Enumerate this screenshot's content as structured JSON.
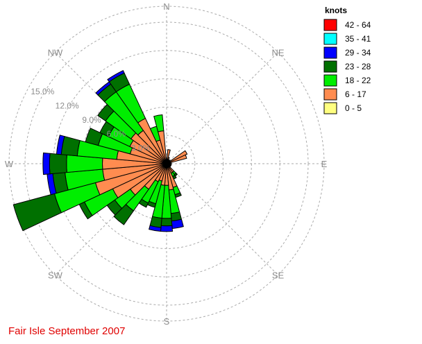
{
  "chart_data": {
    "type": "wind-rose",
    "title": "Fair Isle September 2007",
    "legend_title": "knots",
    "legend_position": "top-right",
    "speed_bins": [
      {
        "label": "0 - 5",
        "color": "#ffff80"
      },
      {
        "label": "6 - 17",
        "color": "#ff8c50"
      },
      {
        "label": "18 - 22",
        "color": "#00ee00"
      },
      {
        "label": "23 - 28",
        "color": "#007000"
      },
      {
        "label": "29 - 34",
        "color": "#0000ff"
      },
      {
        "label": "35 - 41",
        "color": "#00ffff"
      },
      {
        "label": "42 - 64",
        "color": "#ff0000"
      }
    ],
    "direction_labels": [
      "N",
      "NE",
      "E",
      "SE",
      "S",
      "SW",
      "W",
      "NW"
    ],
    "ring_labels": [
      "3.0%",
      "6.0%",
      "9.0%",
      "12.0%",
      "15.0%"
    ],
    "rings_percent": [
      3,
      6,
      9,
      12,
      15
    ],
    "sector_width_deg": 10,
    "sectors": [
      {
        "dir": 0,
        "values": [
          0.2,
          0.0,
          0.0,
          0.0,
          0.0,
          0.0,
          0.0
        ]
      },
      {
        "dir": 10,
        "values": [
          0.5,
          1.0,
          0.0,
          0.0,
          0.0,
          0.0,
          0.0
        ]
      },
      {
        "dir": 20,
        "values": [
          0.3,
          0.4,
          0.0,
          0.0,
          0.0,
          0.0,
          0.0
        ]
      },
      {
        "dir": 30,
        "values": [
          0.2,
          0.3,
          0.0,
          0.0,
          0.0,
          0.0,
          0.0
        ]
      },
      {
        "dir": 40,
        "values": [
          0.2,
          0.2,
          0.0,
          0.0,
          0.0,
          0.0,
          0.0
        ]
      },
      {
        "dir": 50,
        "values": [
          0.2,
          0.3,
          0.0,
          0.0,
          0.0,
          0.0,
          0.0
        ]
      },
      {
        "dir": 60,
        "values": [
          0.2,
          2.2,
          0.0,
          0.0,
          0.0,
          0.0,
          0.0
        ]
      },
      {
        "dir": 70,
        "values": [
          0.2,
          2.0,
          0.0,
          0.0,
          0.0,
          0.0,
          0.0
        ]
      },
      {
        "dir": 80,
        "values": [
          0.2,
          0.3,
          0.0,
          0.0,
          0.0,
          0.0,
          0.0
        ]
      },
      {
        "dir": 90,
        "values": [
          0.2,
          0.3,
          0.0,
          0.0,
          0.0,
          0.0,
          0.0
        ]
      },
      {
        "dir": 100,
        "values": [
          0.2,
          0.3,
          0.0,
          0.0,
          0.0,
          0.0,
          0.0
        ]
      },
      {
        "dir": 110,
        "values": [
          0.2,
          0.3,
          0.0,
          0.0,
          0.0,
          0.0,
          0.0
        ]
      },
      {
        "dir": 120,
        "values": [
          0.2,
          0.3,
          0.0,
          0.0,
          0.0,
          0.0,
          0.0
        ]
      },
      {
        "dir": 130,
        "values": [
          0.2,
          0.3,
          0.0,
          0.0,
          0.0,
          0.0,
          0.0
        ]
      },
      {
        "dir": 140,
        "values": [
          0.3,
          0.8,
          0.3,
          0.2,
          0.0,
          0.0,
          0.0
        ]
      },
      {
        "dir": 150,
        "values": [
          0.3,
          0.8,
          0.4,
          0.3,
          0.0,
          0.0,
          0.0
        ]
      },
      {
        "dir": 160,
        "values": [
          0.3,
          2.3,
          0.8,
          0.3,
          0.0,
          0.0,
          0.0
        ]
      },
      {
        "dir": 170,
        "values": [
          0.3,
          2.5,
          2.5,
          0.8,
          0.8,
          0.0,
          0.0
        ]
      },
      {
        "dir": 180,
        "values": [
          0.3,
          2.0,
          3.5,
          0.8,
          0.6,
          0.0,
          0.0
        ]
      },
      {
        "dir": 190,
        "values": [
          0.3,
          2.0,
          3.5,
          1.0,
          0.4,
          0.0,
          0.0
        ]
      },
      {
        "dir": 200,
        "values": [
          0.3,
          1.6,
          2.5,
          0.4,
          0.0,
          0.0,
          0.0
        ]
      },
      {
        "dir": 210,
        "values": [
          0.3,
          1.8,
          2.5,
          0.5,
          0.0,
          0.0,
          0.0
        ]
      },
      {
        "dir": 220,
        "values": [
          0.3,
          3.0,
          2.8,
          1.8,
          0.0,
          0.0,
          0.0
        ]
      },
      {
        "dir": 230,
        "values": [
          0.3,
          4.4,
          2.0,
          1.0,
          0.0,
          0.0,
          0.0
        ]
      },
      {
        "dir": 240,
        "values": [
          0.3,
          6.0,
          3.3,
          0.6,
          0.0,
          0.0,
          0.0
        ]
      },
      {
        "dir": 250,
        "values": [
          0.3,
          7.5,
          4.5,
          4.5,
          0.0,
          0.0,
          0.0
        ]
      },
      {
        "dir": 260,
        "values": [
          0.3,
          6.5,
          4.0,
          1.3,
          0.6,
          0.0,
          0.0
        ]
      },
      {
        "dir": 270,
        "values": [
          0.3,
          6.5,
          3.8,
          1.8,
          0.7,
          0.0,
          0.0
        ]
      },
      {
        "dir": 280,
        "values": [
          0.3,
          5.0,
          4.2,
          1.7,
          0.5,
          0.0,
          0.0
        ]
      },
      {
        "dir": 290,
        "values": [
          0.3,
          3.7,
          3.5,
          1.4,
          0.0,
          0.0,
          0.0
        ]
      },
      {
        "dir": 300,
        "values": [
          0.3,
          4.0,
          2.5,
          1.0,
          0.0,
          0.0,
          0.0
        ]
      },
      {
        "dir": 310,
        "values": [
          0.3,
          4.3,
          3.3,
          1.0,
          0.0,
          0.0,
          0.0
        ]
      },
      {
        "dir": 320,
        "values": [
          0.3,
          4.0,
          5.0,
          1.0,
          0.3,
          0.0,
          0.0
        ]
      },
      {
        "dir": 330,
        "values": [
          0.3,
          5.0,
          4.0,
          1.3,
          0.3,
          0.0,
          0.0
        ]
      },
      {
        "dir": 340,
        "values": [
          0.3,
          2.3,
          1.5,
          0.0,
          0.0,
          0.0,
          0.0
        ]
      },
      {
        "dir": 350,
        "values": [
          0.3,
          3.2,
          1.7,
          0.0,
          0.0,
          0.0,
          0.0
        ]
      }
    ]
  }
}
